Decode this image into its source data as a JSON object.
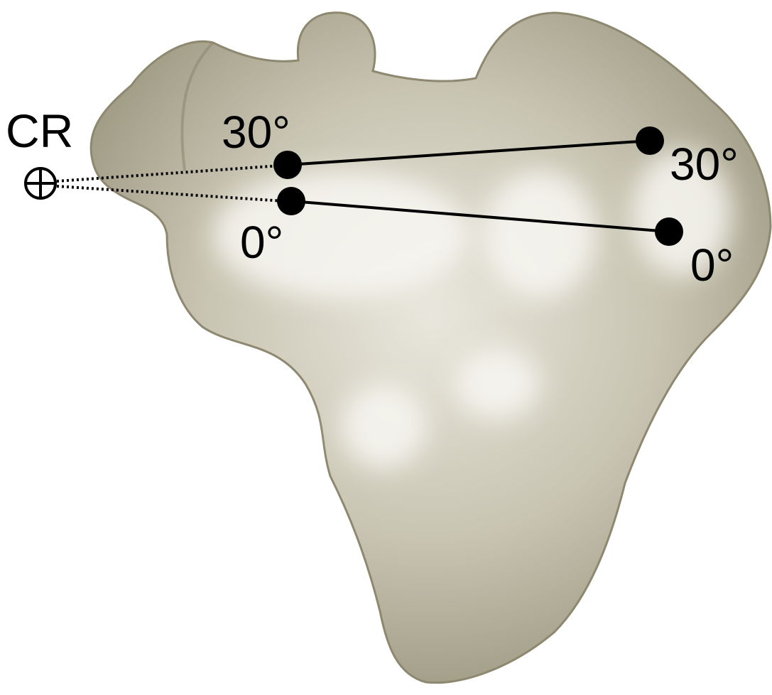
{
  "cr_label": "CR",
  "points": [
    {
      "label": "30°"
    },
    {
      "label": "0°"
    },
    {
      "label": "30°"
    },
    {
      "label": "0°"
    }
  ]
}
